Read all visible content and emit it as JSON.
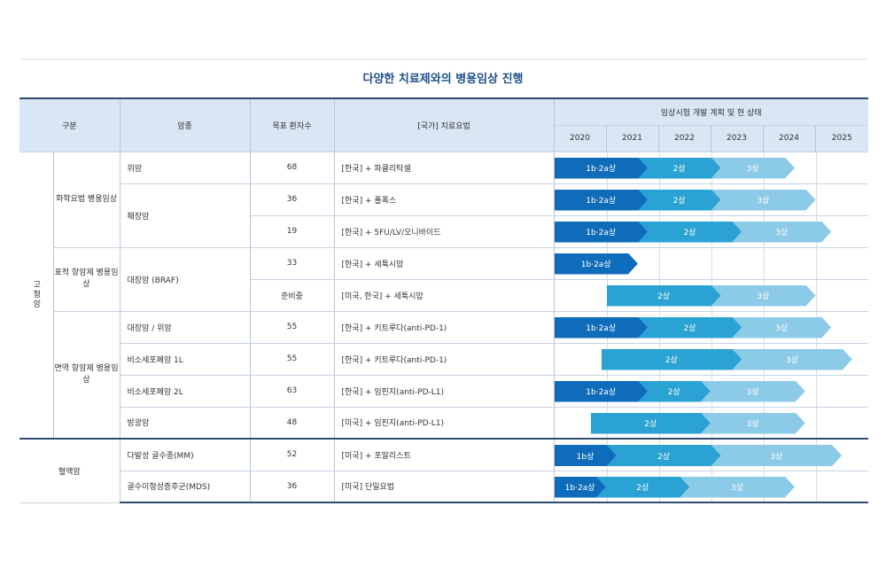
{
  "title": "다양한 치료제와의 병용임상 진행",
  "headers": {
    "category": "구분",
    "cancer": "암종",
    "patients": "목표 환자수",
    "regimen": "[국가] 치료요법",
    "plan": "임상시험 개발 계획 및 현 상태",
    "years": [
      "2020",
      "2021",
      "2022",
      "2023",
      "2024",
      "2025"
    ]
  },
  "categories": {
    "solid": "고형암",
    "chemo": "화학요법 병용임상",
    "target": "표적 항암제 병용임상",
    "immuno": "면역 항암제 병용임상",
    "blood": "혈액암"
  },
  "colors": {
    "phase1": "#0f6cba",
    "phase2": "#2aa2d3",
    "phase3": "#8ccbe8"
  },
  "chart_data": {
    "type": "table",
    "x_axis": [
      "2020",
      "2021",
      "2022",
      "2023",
      "2024",
      "2025"
    ],
    "rows": [
      {
        "cancer": "위암",
        "patients": "68",
        "regimen": "[한국] + 파클리탁셀",
        "phases": [
          {
            "label": "1b·2a상",
            "start": 2020.0,
            "end": 2021.6
          },
          {
            "label": "2상",
            "start": 2021.6,
            "end": 2023.0
          },
          {
            "label": "3상",
            "start": 2023.0,
            "end": 2024.6
          }
        ]
      },
      {
        "cancer": "췌장암",
        "patients": "36",
        "regimen": "[한국] + 폴폭스",
        "phases": [
          {
            "label": "1b·2a상",
            "start": 2020.0,
            "end": 2021.6
          },
          {
            "label": "2상",
            "start": 2021.6,
            "end": 2023.0
          },
          {
            "label": "3상",
            "start": 2023.0,
            "end": 2025.0
          }
        ]
      },
      {
        "patients": "19",
        "regimen": "[한국] + 5FU/LV/오니바이드",
        "phases": [
          {
            "label": "1b·2a상",
            "start": 2020.0,
            "end": 2021.6
          },
          {
            "label": "2상",
            "start": 2021.6,
            "end": 2023.4
          },
          {
            "label": "3상",
            "start": 2023.4,
            "end": 2025.3
          }
        ]
      },
      {
        "cancer": "대장암 (BRAF)",
        "patients": "33",
        "regimen": "[한국] + 세툭시맙",
        "phases": [
          {
            "label": "1b·2a상",
            "start": 2020.0,
            "end": 2021.6
          }
        ]
      },
      {
        "patients": "준비중",
        "regimen": "[미국, 한국] + 세툭시맙",
        "phases": [
          {
            "label": "2상",
            "start": 2021.0,
            "end": 2023.0
          },
          {
            "label": "3상",
            "start": 2023.0,
            "end": 2025.0
          }
        ]
      },
      {
        "cancer": "대장암 / 위암",
        "patients": "55",
        "regimen": "[한국] + 키트루다(anti-PD-1)",
        "phases": [
          {
            "label": "1b·2a상",
            "start": 2020.0,
            "end": 2021.6
          },
          {
            "label": "2상",
            "start": 2021.6,
            "end": 2023.4
          },
          {
            "label": "3상",
            "start": 2023.4,
            "end": 2025.3
          }
        ]
      },
      {
        "cancer": "비소세포폐암 1L",
        "patients": "55",
        "regimen": "[한국] + 키트루다(anti-PD-1)",
        "phases": [
          {
            "label": "2상",
            "start": 2020.9,
            "end": 2023.4
          },
          {
            "label": "3상",
            "start": 2023.4,
            "end": 2025.7
          }
        ]
      },
      {
        "cancer": "비소세포폐암 2L",
        "patients": "63",
        "regimen": "[한국] + 임핀지(anti-PD-L1)",
        "phases": [
          {
            "label": "1b·2a상",
            "start": 2020.0,
            "end": 2021.6
          },
          {
            "label": "2상",
            "start": 2021.6,
            "end": 2022.8
          },
          {
            "label": "3상",
            "start": 2022.8,
            "end": 2024.8
          }
        ]
      },
      {
        "cancer": "방광암",
        "patients": "48",
        "regimen": "[미국] + 임핀지(anti-PD-L1)",
        "phases": [
          {
            "label": "2상",
            "start": 2020.7,
            "end": 2022.8
          },
          {
            "label": "3상",
            "start": 2022.8,
            "end": 2024.8
          }
        ]
      },
      {
        "cancer": "다발성 골수종(MM)",
        "patients": "52",
        "regimen": "[미국] + 포말리스트",
        "phases": [
          {
            "label": "1b상",
            "start": 2020.0,
            "end": 2021.0
          },
          {
            "label": "2상",
            "start": 2021.0,
            "end": 2023.0
          },
          {
            "label": "3상",
            "start": 2023.0,
            "end": 2025.5
          }
        ]
      },
      {
        "cancer": "골수이형성증후군(MDS)",
        "patients": "36",
        "regimen": "[미국] 단일요법",
        "phases": [
          {
            "label": "1b·2a상",
            "start": 2020.0,
            "end": 2020.8
          },
          {
            "label": "2상",
            "start": 2020.8,
            "end": 2022.4
          },
          {
            "label": "3상",
            "start": 2022.4,
            "end": 2024.6
          }
        ]
      }
    ]
  }
}
